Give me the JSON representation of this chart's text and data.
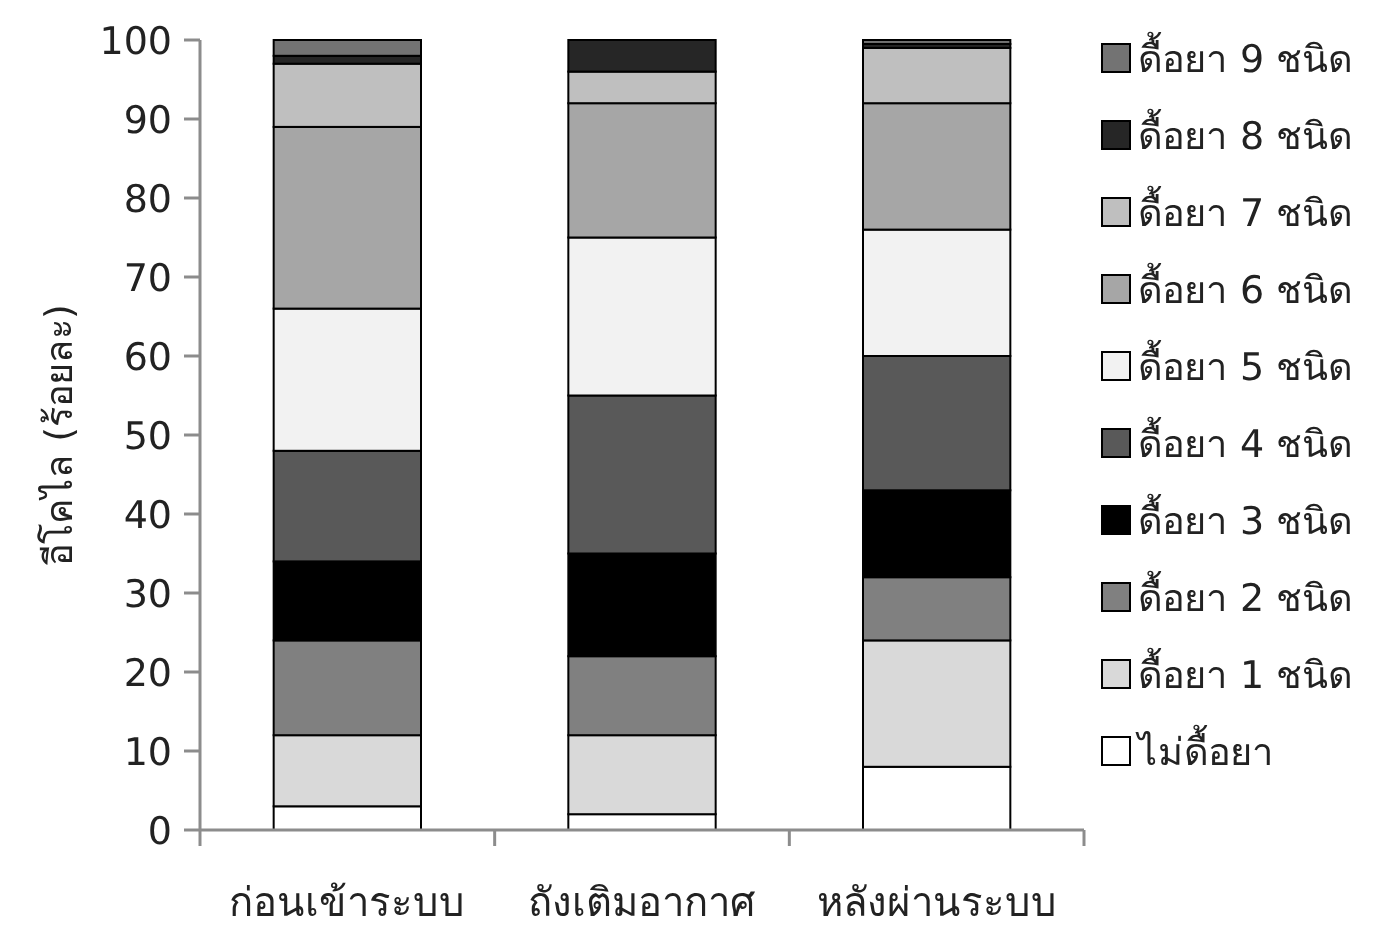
{
  "chart_data": {
    "type": "bar",
    "stacked": true,
    "ylabel": "อีโคไล (ร้อยละ)",
    "categories": [
      "ก่อนเข้าระบบ",
      "ถังเติมอากาศ",
      "หลังผ่านระบบ"
    ],
    "ylim": [
      0,
      100
    ],
    "yticks": [
      0,
      10,
      20,
      30,
      40,
      50,
      60,
      70,
      80,
      90,
      100
    ],
    "legend": "right",
    "series": [
      {
        "name": "ไม่ดื้อยา",
        "color": "#ffffff",
        "values": [
          3,
          2,
          8
        ]
      },
      {
        "name": "ดื้อยา 1 ชนิด",
        "color": "#d9d9d9",
        "values": [
          9,
          10,
          16
        ]
      },
      {
        "name": "ดื้อยา 2 ชนิด",
        "color": "#808080",
        "values": [
          12,
          10,
          8
        ]
      },
      {
        "name": "ดื้อยา 3 ชนิด",
        "color": "#000000",
        "values": [
          10,
          13,
          11
        ]
      },
      {
        "name": "ดื้อยา 4 ชนิด",
        "color": "#595959",
        "values": [
          14,
          20,
          17
        ]
      },
      {
        "name": "ดื้อยา 5 ชนิด",
        "color": "#f2f2f2",
        "values": [
          18,
          20,
          16
        ]
      },
      {
        "name": "ดื้อยา 6 ชนิด",
        "color": "#a6a6a6",
        "values": [
          23,
          17,
          16
        ]
      },
      {
        "name": "ดื้อยา 7 ชนิด",
        "color": "#bfbfbf",
        "values": [
          8,
          4,
          7
        ]
      },
      {
        "name": "ดื้อยา 8 ชนิด",
        "color": "#262626",
        "values": [
          1,
          4,
          0.5
        ]
      },
      {
        "name": "ดื้อยา 9 ชนิด",
        "color": "#737373",
        "values": [
          2,
          0,
          0.5
        ]
      }
    ]
  }
}
